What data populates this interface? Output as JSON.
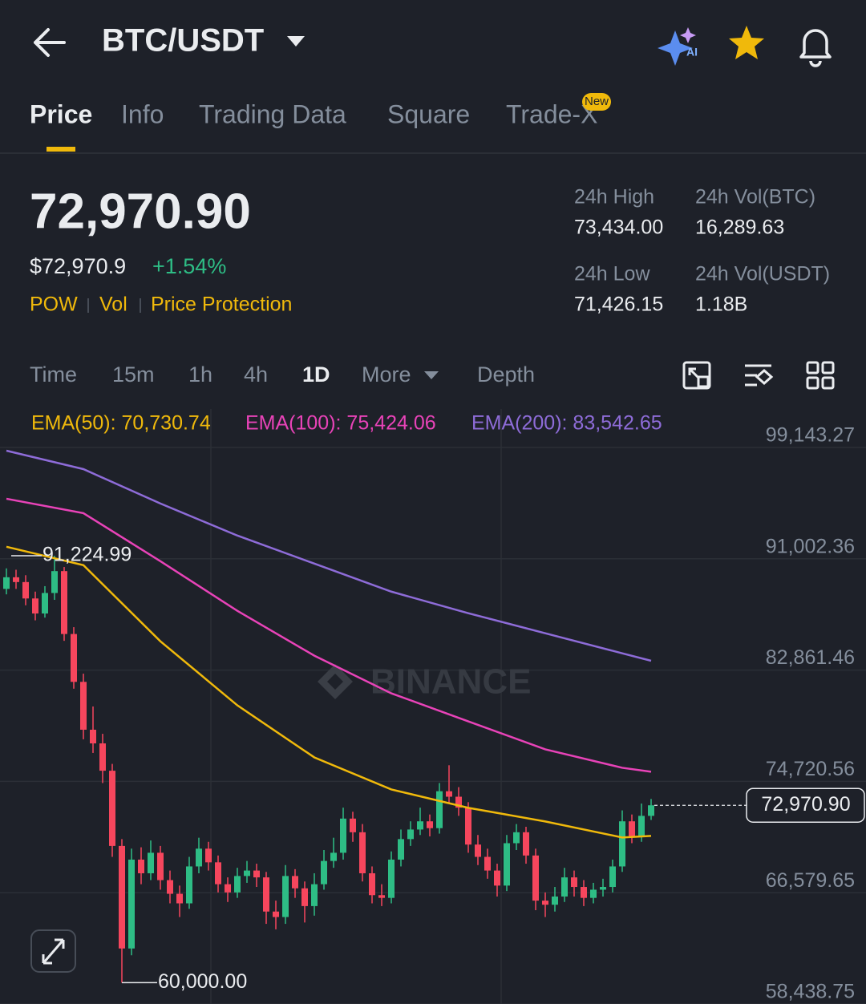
{
  "header": {
    "title": "BTC/USDT"
  },
  "tabs": [
    "Price",
    "Info",
    "Trading Data",
    "Square",
    "Trade-X"
  ],
  "tab_badge": "New",
  "ticker": {
    "price": "72,970.90",
    "fiat": "$72,970.9",
    "change": "+1.54%",
    "tags": [
      "POW",
      "Vol",
      "Price Protection"
    ]
  },
  "stats": [
    {
      "label": "24h High",
      "value": "73,434.00"
    },
    {
      "label": "24h Vol(BTC)",
      "value": "16,289.63"
    },
    {
      "label": "24h Low",
      "value": "71,426.15"
    },
    {
      "label": "24h Vol(USDT)",
      "value": "1.18B"
    }
  ],
  "intervals": [
    "Time",
    "15m",
    "1h",
    "4h",
    "1D",
    "More",
    "Depth"
  ],
  "watermark": "BINANCE",
  "chart_data": {
    "type": "candlestick",
    "up_color": "#2ebd85",
    "down_color": "#f6465d",
    "open": [
      88800,
      89650,
      89300,
      88100,
      87000,
      88500,
      90100,
      85500,
      82000,
      78500,
      77500,
      75500,
      70000,
      62500,
      69000,
      68000,
      69500,
      67500,
      66500,
      65800,
      68500,
      69800,
      68800,
      67200,
      66600,
      67800,
      68200,
      67700,
      65200,
      64800,
      67800,
      66900,
      65600,
      67200,
      68900,
      69500,
      72000,
      71000,
      68000,
      66400,
      66200,
      69000,
      70500,
      71200,
      71800,
      71300,
      74000,
      73600,
      72800,
      70100,
      69200,
      68200,
      67100,
      70200,
      71000,
      69300,
      66000,
      65700,
      66300,
      67700,
      67000,
      66200,
      66800,
      67000,
      68500,
      71800,
      70700,
      72200
    ],
    "high": [
      90300,
      90200,
      89800,
      88600,
      89000,
      91224.99,
      90400,
      86000,
      82600,
      80200,
      78200,
      76000,
      70500,
      69800,
      69900,
      70400,
      70000,
      68200,
      67100,
      69200,
      70600,
      70300,
      69300,
      67700,
      68400,
      68900,
      68700,
      68100,
      66000,
      68600,
      68300,
      67400,
      68000,
      69700,
      70600,
      72800,
      72500,
      71600,
      68500,
      67200,
      69600,
      71200,
      71800,
      72800,
      72300,
      74600,
      75900,
      74300,
      73200,
      70800,
      69800,
      68700,
      70800,
      71600,
      71400,
      69800,
      66600,
      67000,
      68400,
      68200,
      67500,
      67300,
      67600,
      69000,
      72600,
      72300,
      73100,
      73434
    ],
    "low": [
      88400,
      88800,
      87600,
      86500,
      86700,
      88000,
      85000,
      81500,
      77800,
      76800,
      74600,
      69200,
      60000,
      62000,
      67200,
      67500,
      66800,
      65800,
      64800,
      65400,
      68000,
      68200,
      66600,
      65900,
      66200,
      67300,
      67000,
      64300,
      63900,
      64300,
      66200,
      64400,
      64900,
      66800,
      68400,
      69000,
      70300,
      67400,
      65800,
      65600,
      65800,
      68500,
      70000,
      70800,
      70700,
      70900,
      73100,
      72200,
      69500,
      68600,
      67600,
      66300,
      66700,
      69700,
      68700,
      65300,
      64800,
      65200,
      65900,
      66300,
      65600,
      65800,
      66300,
      66600,
      68100,
      70200,
      70300,
      71900
    ],
    "close": [
      89650,
      89300,
      88100,
      87000,
      88500,
      90100,
      85500,
      82000,
      78500,
      77500,
      75500,
      70000,
      62500,
      69000,
      68000,
      69500,
      67500,
      66500,
      65800,
      68500,
      69800,
      68800,
      67200,
      66600,
      67800,
      68200,
      67700,
      65200,
      64800,
      67800,
      66900,
      65600,
      67200,
      68900,
      69500,
      72000,
      71000,
      68000,
      66400,
      66200,
      69000,
      70500,
      71200,
      71800,
      71300,
      74000,
      73600,
      72800,
      70100,
      69200,
      68200,
      67100,
      70200,
      71000,
      69300,
      66000,
      65700,
      66300,
      67700,
      67000,
      66200,
      66800,
      67000,
      68500,
      71800,
      70700,
      72200,
      72970.9
    ],
    "series": [
      {
        "name": "EMA(50): 70,730.74",
        "color": "#f0b90b",
        "x": [
          0,
          8,
          16,
          24,
          32,
          40,
          48,
          56,
          64,
          67
        ],
        "values": [
          91880,
          90534,
          84970,
          80284,
          76476,
          74133,
          72787,
          71791,
          70620,
          70730.74
        ]
      },
      {
        "name": "EMA(100): 75,424.06",
        "color": "#e843b8",
        "x": [
          0,
          8,
          16,
          24,
          32,
          40,
          48,
          56,
          64,
          67
        ],
        "values": [
          95394,
          94340,
          90826,
          87195,
          83915,
          81162,
          79112,
          77062,
          75715,
          75424.06
        ]
      },
      {
        "name": "EMA(200): 83,542.65",
        "color": "#8e6cd8",
        "x": [
          0,
          8,
          16,
          24,
          32,
          40,
          48,
          56,
          64,
          67
        ],
        "values": [
          98909,
          97561,
          95043,
          92700,
          90650,
          88600,
          87020,
          85555,
          84090,
          83542.65
        ]
      }
    ],
    "ylim": [
      58438.75,
      99143.27
    ],
    "yticks": [
      {
        "value": 99143.27,
        "label": "99,143.27"
      },
      {
        "value": 91002.36,
        "label": "91,002.36"
      },
      {
        "value": 82861.46,
        "label": "82,861.46"
      },
      {
        "value": 74720.56,
        "label": "74,720.56"
      },
      {
        "value": 66579.65,
        "label": "66,579.65"
      },
      {
        "value": 58438.75,
        "label": "58,438.75"
      }
    ],
    "grid": true,
    "annotations": [
      {
        "value": 91224.99,
        "label": "91,224.99"
      },
      {
        "value": 60000,
        "label": "60,000.00"
      }
    ],
    "last_price": {
      "value": 72970.9,
      "label": "72,970.90"
    }
  }
}
